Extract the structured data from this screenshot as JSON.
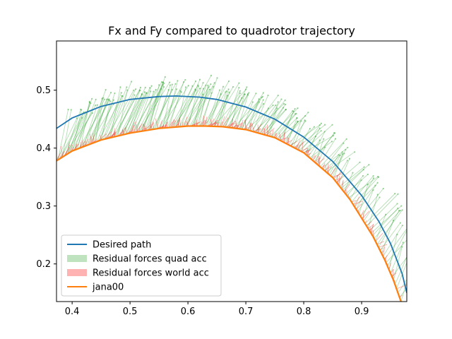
{
  "chart_data": {
    "type": "line",
    "title": "Fx and Fy compared to quadrotor trajectory",
    "xlabel": "",
    "ylabel": "",
    "xlim": [
      0.373,
      0.978
    ],
    "ylim": [
      0.135,
      0.585
    ],
    "x_ticks": [
      "0.4",
      "0.5",
      "0.6",
      "0.7",
      "0.8",
      "0.9"
    ],
    "y_ticks": [
      "0.2",
      "0.3",
      "0.4",
      "0.5"
    ],
    "grid": false,
    "legend_position": "lower-left",
    "colors": {
      "desired": "#1f77b4",
      "actual": "#ff7f0e",
      "quad": "#2ca02c",
      "world": "#ff0000"
    },
    "legend": [
      {
        "label": "Desired path",
        "kind": "line",
        "color": "#1f77b4"
      },
      {
        "label": "Residual forces quad acc",
        "kind": "patch",
        "color": "#2ca02c"
      },
      {
        "label": "Residual forces world acc",
        "kind": "patch",
        "color": "#ff0000"
      },
      {
        "label": "jana00",
        "kind": "line",
        "color": "#ff7f0e"
      }
    ],
    "series": [
      {
        "name": "Desired path",
        "x": [
          0.373,
          0.4,
          0.45,
          0.5,
          0.55,
          0.58,
          0.62,
          0.65,
          0.7,
          0.75,
          0.8,
          0.85,
          0.9,
          0.93,
          0.95,
          0.97,
          0.978
        ],
        "y": [
          0.434,
          0.452,
          0.472,
          0.484,
          0.489,
          0.49,
          0.488,
          0.484,
          0.471,
          0.45,
          0.419,
          0.377,
          0.318,
          0.273,
          0.235,
          0.183,
          0.15
        ]
      },
      {
        "name": "jana00",
        "x": [
          0.373,
          0.4,
          0.45,
          0.5,
          0.55,
          0.6,
          0.63,
          0.66,
          0.7,
          0.75,
          0.8,
          0.85,
          0.88,
          0.9,
          0.92,
          0.94,
          0.955,
          0.968
        ],
        "y": [
          0.378,
          0.395,
          0.414,
          0.426,
          0.434,
          0.438,
          0.438,
          0.437,
          0.432,
          0.418,
          0.392,
          0.349,
          0.311,
          0.279,
          0.247,
          0.207,
          0.172,
          0.135
        ]
      }
    ]
  }
}
